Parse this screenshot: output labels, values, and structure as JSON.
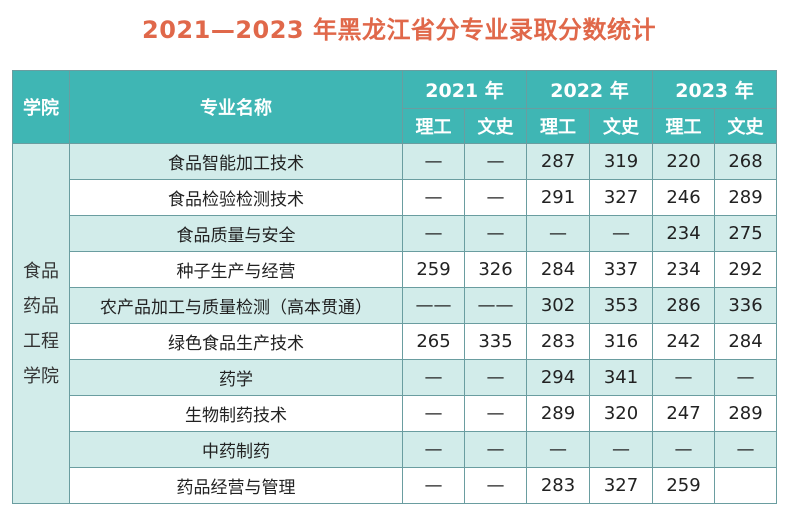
{
  "title": "2021—2023 年黑龙江省分专业录取分数统计",
  "headers": {
    "college": "学院",
    "major": "专业名称",
    "years": [
      "2021 年",
      "2022 年",
      "2023 年"
    ],
    "science": "理工",
    "arts": "文史"
  },
  "department": [
    "食品",
    "药品",
    "工程",
    "学院"
  ],
  "rows": [
    {
      "major": "食品智能加工技术",
      "scores": [
        "—",
        "—",
        "287",
        "319",
        "220",
        "268"
      ]
    },
    {
      "major": "食品检验检测技术",
      "scores": [
        "—",
        "—",
        "291",
        "327",
        "246",
        "289"
      ]
    },
    {
      "major": "食品质量与安全",
      "scores": [
        "—",
        "—",
        "—",
        "—",
        "234",
        "275"
      ]
    },
    {
      "major": "种子生产与经营",
      "scores": [
        "259",
        "326",
        "284",
        "337",
        "234",
        "292"
      ]
    },
    {
      "major": "农产品加工与质量检测（高本贯通）",
      "scores": [
        "——",
        "——",
        "302",
        "353",
        "286",
        "336"
      ]
    },
    {
      "major": "绿色食品生产技术",
      "scores": [
        "265",
        "335",
        "283",
        "316",
        "242",
        "284"
      ]
    },
    {
      "major": "药学",
      "scores": [
        "—",
        "—",
        "294",
        "341",
        "—",
        "—"
      ]
    },
    {
      "major": "生物制药技术",
      "scores": [
        "—",
        "—",
        "289",
        "320",
        "247",
        "289"
      ]
    },
    {
      "major": "中药制药",
      "scores": [
        "—",
        "—",
        "—",
        "—",
        "—",
        "—"
      ]
    },
    {
      "major": "药品经营与管理",
      "scores": [
        "—",
        "—",
        "283",
        "327",
        "259",
        ""
      ]
    }
  ],
  "colors": {
    "header_bg": "#3fb6b4",
    "stripe_bg": "#d2ecea",
    "title_color": "#e0684a"
  }
}
